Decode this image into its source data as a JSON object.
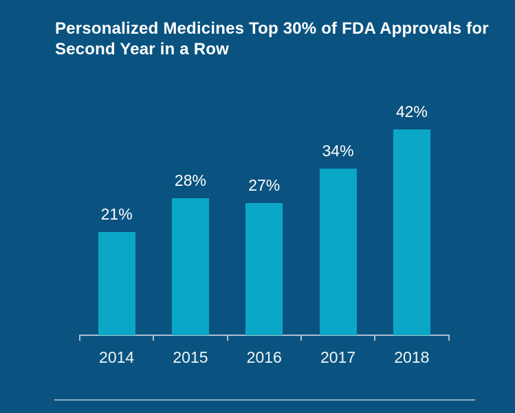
{
  "title": {
    "line1": "Personalized Medicines Top 30% of FDA Approvals for",
    "line2": "Second Year in a Row"
  },
  "chart_data": {
    "type": "bar",
    "title": "Personalized Medicines Top 30% of FDA Approvals for Second Year in a Row",
    "categories": [
      "2014",
      "2015",
      "2016",
      "2017",
      "2018"
    ],
    "values": [
      21,
      28,
      27,
      34,
      42
    ],
    "value_labels": [
      "21%",
      "28%",
      "27%",
      "34%",
      "42%"
    ],
    "xlabel": "",
    "ylabel": "",
    "ylim": [
      0,
      45
    ],
    "unit": "percent",
    "grid": false,
    "legend": false,
    "axes": "x-axis baseline with downward ticks between bars; no y-axis"
  },
  "colors": {
    "background": "#0A5380",
    "bar": "#0AA7C7",
    "title_text": "#FFFFFF",
    "label_text": "#F2F6F7",
    "axis_line": "#A9C2D0",
    "divider": "#8FAEC2"
  }
}
